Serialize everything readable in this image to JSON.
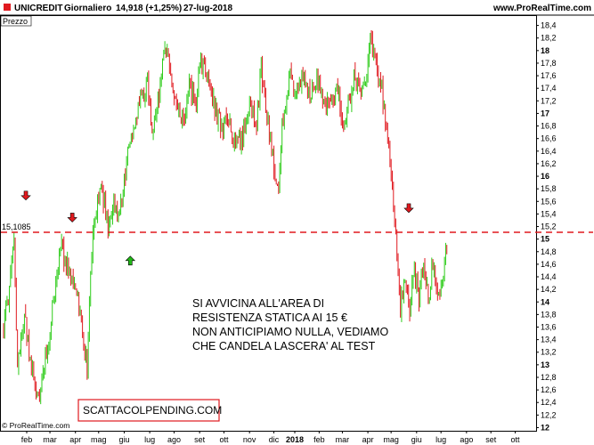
{
  "header": {
    "symbol": "UNICREDIT",
    "period": "Giornaliero",
    "last": "14,918 (+1,25%)",
    "date": "27-lug-2018",
    "site": "www.ProRealTime.com"
  },
  "panel_label": "Prezzo",
  "watermark": "© ProRealTime.com",
  "stamp_text": "SCATTACOLPENDING.COM",
  "annotation_lines": [
    "SI AVVICINA ALL'AREA DI",
    "RESISTENZA STATICA AI 15 €",
    "NON ANTICIPIAMO NULLA, VEDIAMO",
    "CHE CANDELA LASCERA' AL TEST"
  ],
  "colors": {
    "up": "#2ecc1a",
    "down": "#e0191f",
    "resistance": "#e0191f",
    "arrow_down": "#e0191f",
    "arrow_up": "#22b818",
    "header_icon": "#e0191f"
  },
  "chart_data": {
    "type": "candlestick",
    "title": "UNICREDIT Giornaliero",
    "y_ticks": [
      "18,4",
      "18,2",
      "18",
      "17,8",
      "17,6",
      "17,4",
      "17,2",
      "17",
      "16,8",
      "16,6",
      "16,4",
      "16,2",
      "16",
      "15,8",
      "15,6",
      "15,4",
      "15,2",
      "15",
      "14,8",
      "14,6",
      "14,4",
      "14,2",
      "14",
      "13,8",
      "13,6",
      "13,4",
      "13,2",
      "13",
      "12,8",
      "12,6",
      "12,4",
      "12,2",
      "12"
    ],
    "y_major": [
      "18",
      "17",
      "16",
      "15",
      "14",
      "13",
      "12"
    ],
    "ylim": [
      11.95,
      18.55
    ],
    "x_ticks": [
      {
        "label": "feb",
        "i": 0
      },
      {
        "label": "mar",
        "i": 20
      },
      {
        "label": "apr",
        "i": 42
      },
      {
        "label": "mag",
        "i": 62
      },
      {
        "label": "giu",
        "i": 84
      },
      {
        "label": "lug",
        "i": 106
      },
      {
        "label": "ago",
        "i": 127
      },
      {
        "label": "set",
        "i": 149
      },
      {
        "label": "ott",
        "i": 170
      },
      {
        "label": "nov",
        "i": 192
      },
      {
        "label": "dic",
        "i": 213
      },
      {
        "label": "2018",
        "i": 231,
        "major": true
      },
      {
        "label": "feb",
        "i": 252
      },
      {
        "label": "mar",
        "i": 272
      },
      {
        "label": "apr",
        "i": 294
      },
      {
        "label": "mag",
        "i": 314
      },
      {
        "label": "giu",
        "i": 336
      },
      {
        "label": "lug",
        "i": 357
      },
      {
        "label": "ago",
        "i": 379
      },
      {
        "label": "set",
        "i": 400
      },
      {
        "label": "ott",
        "i": 421
      }
    ],
    "resistance_level": 15.1085,
    "resistance_label": "15,1085",
    "arrows": [
      {
        "i": 10,
        "dir": "down",
        "price": 15.65
      },
      {
        "i": 50,
        "dir": "down",
        "price": 15.3
      },
      {
        "i": 100,
        "dir": "up",
        "price": 14.7
      },
      {
        "i": 340,
        "dir": "down",
        "price": 15.45
      }
    ],
    "path_keypoints": [
      [
        0,
        13.6
      ],
      [
        5,
        14.2
      ],
      [
        9,
        14.9
      ],
      [
        12,
        13.0
      ],
      [
        18,
        13.8
      ],
      [
        24,
        12.9
      ],
      [
        30,
        12.45
      ],
      [
        38,
        13.3
      ],
      [
        46,
        14.4
      ],
      [
        50,
        14.85
      ],
      [
        56,
        14.5
      ],
      [
        64,
        14.1
      ],
      [
        68,
        13.5
      ],
      [
        72,
        13.0
      ],
      [
        76,
        14.8
      ],
      [
        80,
        15.4
      ],
      [
        84,
        15.9
      ],
      [
        90,
        15.2
      ],
      [
        96,
        15.6
      ],
      [
        100,
        15.4
      ],
      [
        106,
        16.2
      ],
      [
        112,
        16.8
      ],
      [
        118,
        17.2
      ],
      [
        124,
        17.5
      ],
      [
        128,
        16.7
      ],
      [
        132,
        17.0
      ],
      [
        136,
        17.6
      ],
      [
        140,
        18.1
      ],
      [
        144,
        17.6
      ],
      [
        150,
        17.0
      ],
      [
        156,
        16.8
      ],
      [
        160,
        17.4
      ],
      [
        166,
        17.2
      ],
      [
        170,
        17.8
      ],
      [
        176,
        17.6
      ],
      [
        182,
        17.1
      ],
      [
        188,
        16.8
      ],
      [
        194,
        16.9
      ],
      [
        200,
        16.4
      ],
      [
        206,
        16.6
      ],
      [
        212,
        17.2
      ],
      [
        218,
        16.8
      ],
      [
        222,
        17.7
      ],
      [
        226,
        17.1
      ],
      [
        232,
        16.3
      ],
      [
        236,
        15.7
      ],
      [
        240,
        16.8
      ],
      [
        246,
        17.6
      ],
      [
        252,
        17.3
      ],
      [
        258,
        17.6
      ],
      [
        264,
        17.3
      ],
      [
        270,
        17.6
      ],
      [
        276,
        17.1
      ],
      [
        282,
        17.2
      ],
      [
        288,
        17.4
      ],
      [
        292,
        16.8
      ],
      [
        296,
        17.0
      ],
      [
        302,
        17.6
      ],
      [
        308,
        17.3
      ],
      [
        312,
        17.6
      ],
      [
        316,
        18.1
      ],
      [
        320,
        17.9
      ],
      [
        324,
        17.6
      ],
      [
        328,
        17.0
      ],
      [
        332,
        16.4
      ],
      [
        336,
        15.5
      ],
      [
        339,
        14.7
      ],
      [
        342,
        13.9
      ],
      [
        346,
        14.4
      ],
      [
        350,
        13.9
      ],
      [
        354,
        14.5
      ],
      [
        358,
        14.1
      ],
      [
        362,
        14.7
      ],
      [
        366,
        14.0
      ],
      [
        370,
        14.6
      ],
      [
        374,
        14.0
      ],
      [
        378,
        14.3
      ],
      [
        382,
        14.9
      ]
    ]
  }
}
